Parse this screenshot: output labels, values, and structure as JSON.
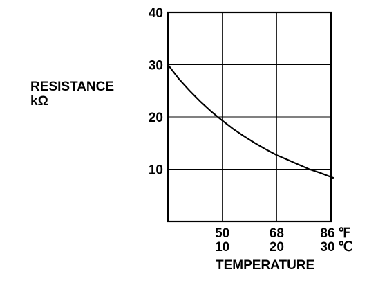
{
  "chart_data": {
    "type": "line",
    "ylabel_line1": "RESISTANCE",
    "ylabel_line2": "kΩ",
    "xlabel": "TEMPERATURE",
    "ylim": [
      0,
      40
    ],
    "xlim_celsius": [
      0,
      30
    ],
    "y_ticks": [
      "10",
      "20",
      "30",
      "40"
    ],
    "y_tick_values": [
      10,
      20,
      30,
      40
    ],
    "x_ticks": [
      {
        "fahrenheit": "50",
        "celsius": "10",
        "value_c": 10
      },
      {
        "fahrenheit": "68",
        "celsius": "20",
        "value_c": 20
      },
      {
        "fahrenheit": "86",
        "celsius": "30",
        "value_c": 30
      }
    ],
    "unit_fahrenheit": "℉",
    "unit_celsius": "℃",
    "grid": true,
    "series": [
      {
        "x_celsius": [
          0,
          2,
          4,
          6,
          8,
          10,
          12,
          14,
          16,
          18,
          20,
          22,
          24,
          26,
          28,
          30.5
        ],
        "y_kohm": [
          30.0,
          27.3,
          25.0,
          22.9,
          21.0,
          19.3,
          17.7,
          16.3,
          15.0,
          13.8,
          12.7,
          11.8,
          10.9,
          10.0,
          9.3,
          8.3
        ]
      }
    ]
  }
}
